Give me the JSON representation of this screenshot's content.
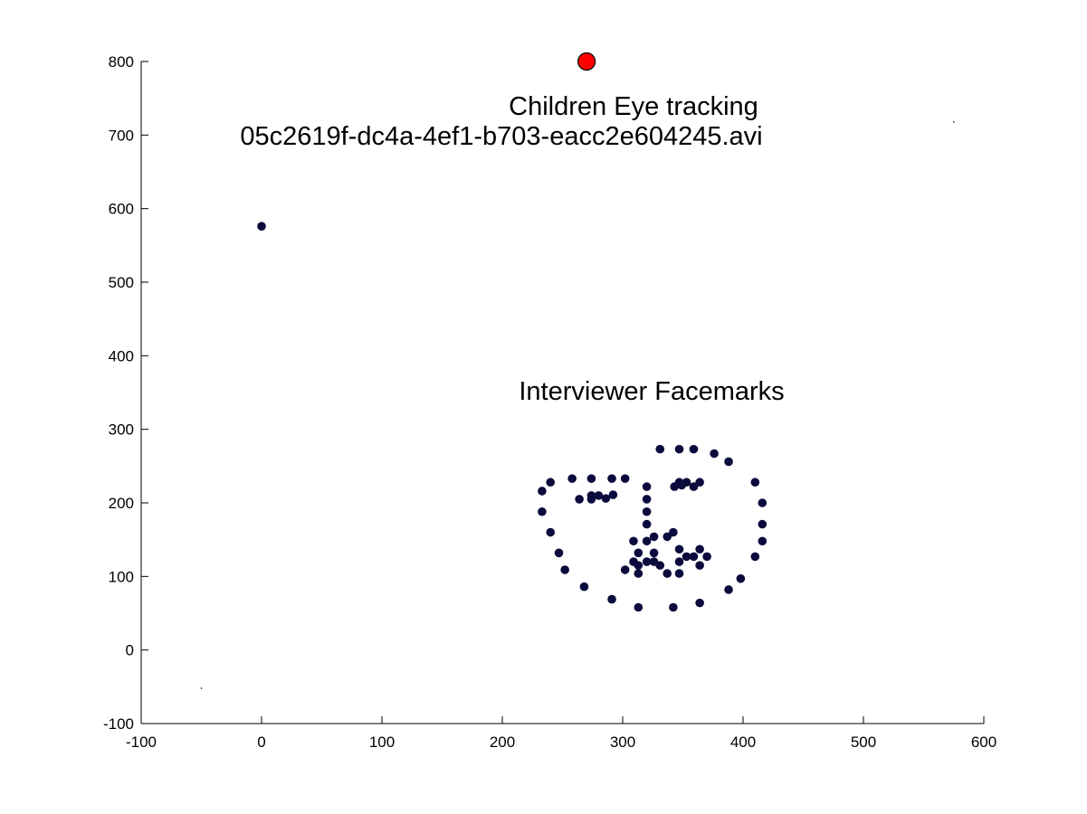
{
  "chart_data": {
    "type": "scatter",
    "xlim": [
      -100,
      600
    ],
    "ylim": [
      -100,
      800
    ],
    "xticks": [
      -100,
      0,
      100,
      200,
      300,
      400,
      500,
      600
    ],
    "yticks": [
      -100,
      0,
      100,
      200,
      300,
      400,
      500,
      600,
      700,
      800
    ],
    "grid": false,
    "annotations": {
      "eye_title": "Children Eye tracking",
      "filename": "05c2619f-dc4a-4ef1-b703-eacc2e604245.avi",
      "face_label": "Interviewer Facemarks"
    },
    "series": [
      {
        "color": "#ff0000",
        "marker": "circle-large",
        "points": [
          [
            270,
            800
          ]
        ]
      },
      {
        "color": "#0a0a3c",
        "marker": "circle",
        "points": [
          [
            0,
            576
          ],
          [
            233,
            216
          ],
          [
            240,
            228
          ],
          [
            233,
            188
          ],
          [
            240,
            160
          ],
          [
            247,
            132
          ],
          [
            252,
            109
          ],
          [
            268,
            86
          ],
          [
            291,
            69
          ],
          [
            313,
            58
          ],
          [
            342,
            58
          ],
          [
            364,
            64
          ],
          [
            388,
            82
          ],
          [
            398,
            97
          ],
          [
            410,
            127
          ],
          [
            416,
            148
          ],
          [
            416,
            171
          ],
          [
            416,
            200
          ],
          [
            410,
            228
          ],
          [
            258,
            233
          ],
          [
            274,
            233
          ],
          [
            291,
            233
          ],
          [
            302,
            233
          ],
          [
            264,
            205
          ],
          [
            274,
            210
          ],
          [
            280,
            210
          ],
          [
            286,
            206
          ],
          [
            292,
            211
          ],
          [
            274,
            205
          ],
          [
            331,
            273
          ],
          [
            347,
            273
          ],
          [
            359,
            273
          ],
          [
            376,
            267
          ],
          [
            388,
            256
          ],
          [
            343,
            222
          ],
          [
            347,
            228
          ],
          [
            353,
            228
          ],
          [
            359,
            222
          ],
          [
            364,
            228
          ],
          [
            349,
            224
          ],
          [
            320,
            222
          ],
          [
            320,
            205
          ],
          [
            320,
            188
          ],
          [
            320,
            171
          ],
          [
            309,
            148
          ],
          [
            320,
            148
          ],
          [
            326,
            154
          ],
          [
            337,
            154
          ],
          [
            342,
            160
          ],
          [
            302,
            109
          ],
          [
            309,
            120
          ],
          [
            313,
            132
          ],
          [
            313,
            115
          ],
          [
            313,
            104
          ],
          [
            320,
            120
          ],
          [
            326,
            132
          ],
          [
            326,
            120
          ],
          [
            331,
            115
          ],
          [
            337,
            104
          ],
          [
            347,
            104
          ],
          [
            347,
            120
          ],
          [
            347,
            137
          ],
          [
            353,
            127
          ],
          [
            359,
            127
          ],
          [
            364,
            137
          ],
          [
            364,
            115
          ],
          [
            370,
            127
          ]
        ]
      },
      {
        "color": "#0a0a3c",
        "marker": "dot-tiny",
        "points": [
          [
            -50,
            -52
          ],
          [
            575,
            718
          ]
        ]
      }
    ]
  }
}
